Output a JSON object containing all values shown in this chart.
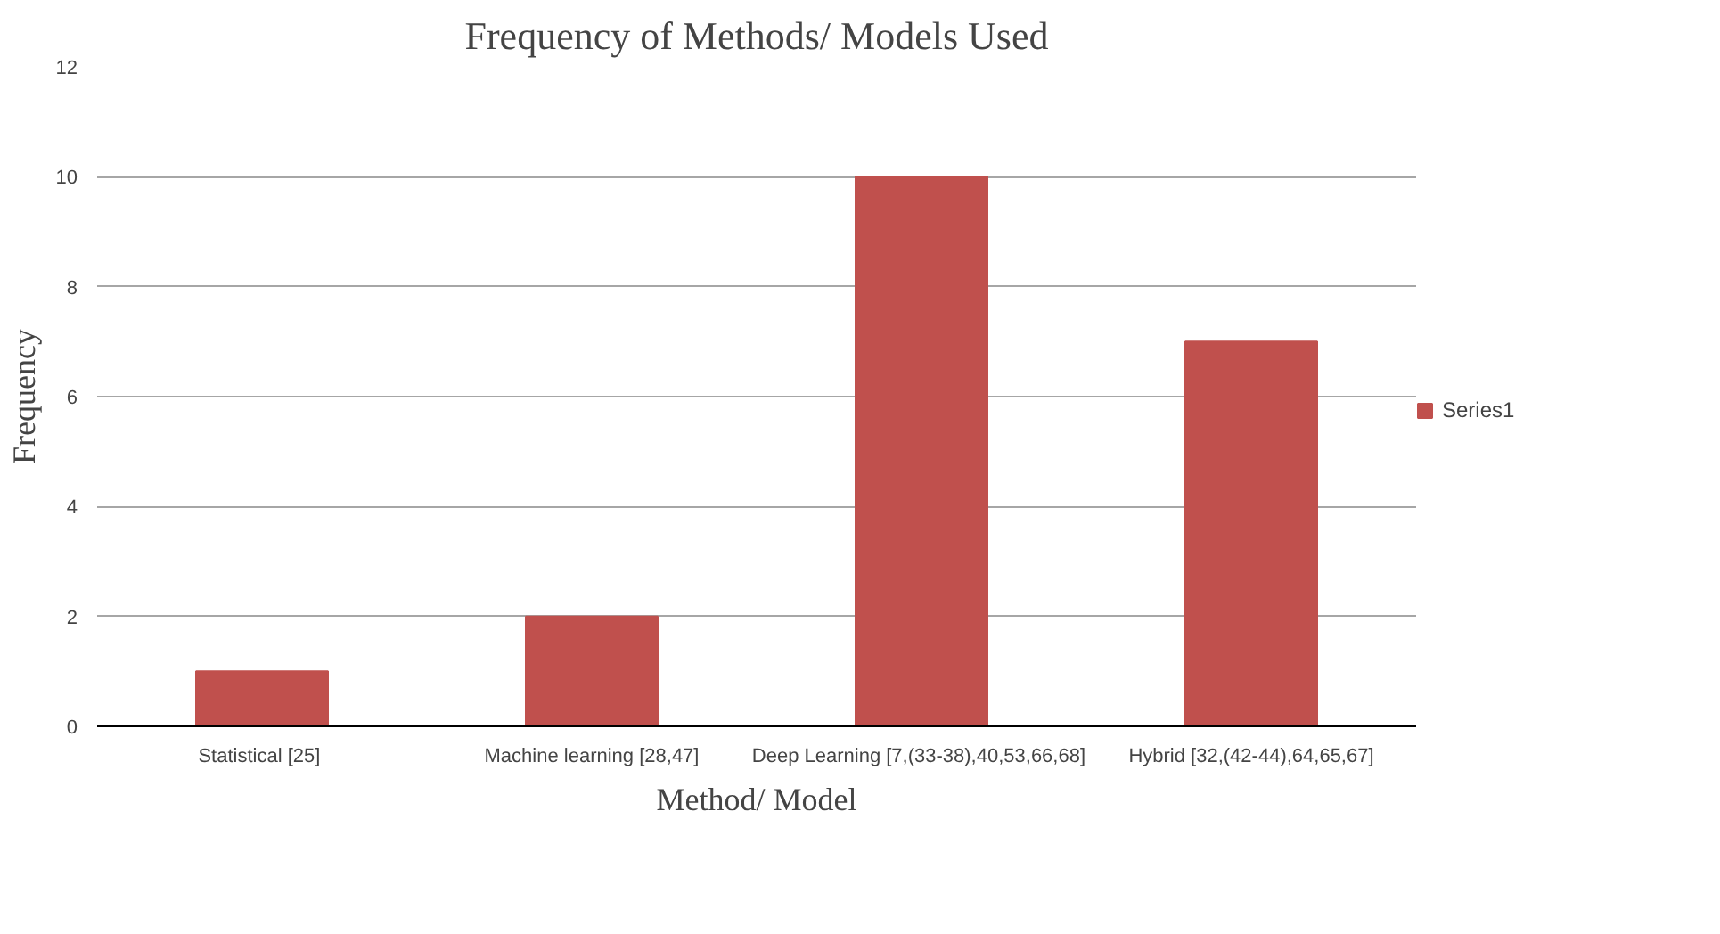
{
  "chart_data": {
    "type": "bar",
    "title": "Frequency of Methods/ Models Used",
    "xlabel": "Method/ Model",
    "ylabel": "Frequency",
    "categories": [
      "Statistical  [25]",
      "Machine learning [28,47]",
      "Deep Learning  [7,(33-38),40,53,66,68]",
      "Hybrid [32,(42-44),64,65,67]"
    ],
    "series": [
      {
        "name": "Series1",
        "color": "#c0504d",
        "values": [
          1,
          2,
          10,
          7
        ]
      }
    ],
    "ylim": [
      0,
      12
    ],
    "yticks": [
      0,
      2,
      4,
      6,
      8,
      10,
      12
    ],
    "grid": "y",
    "legend": "right"
  }
}
